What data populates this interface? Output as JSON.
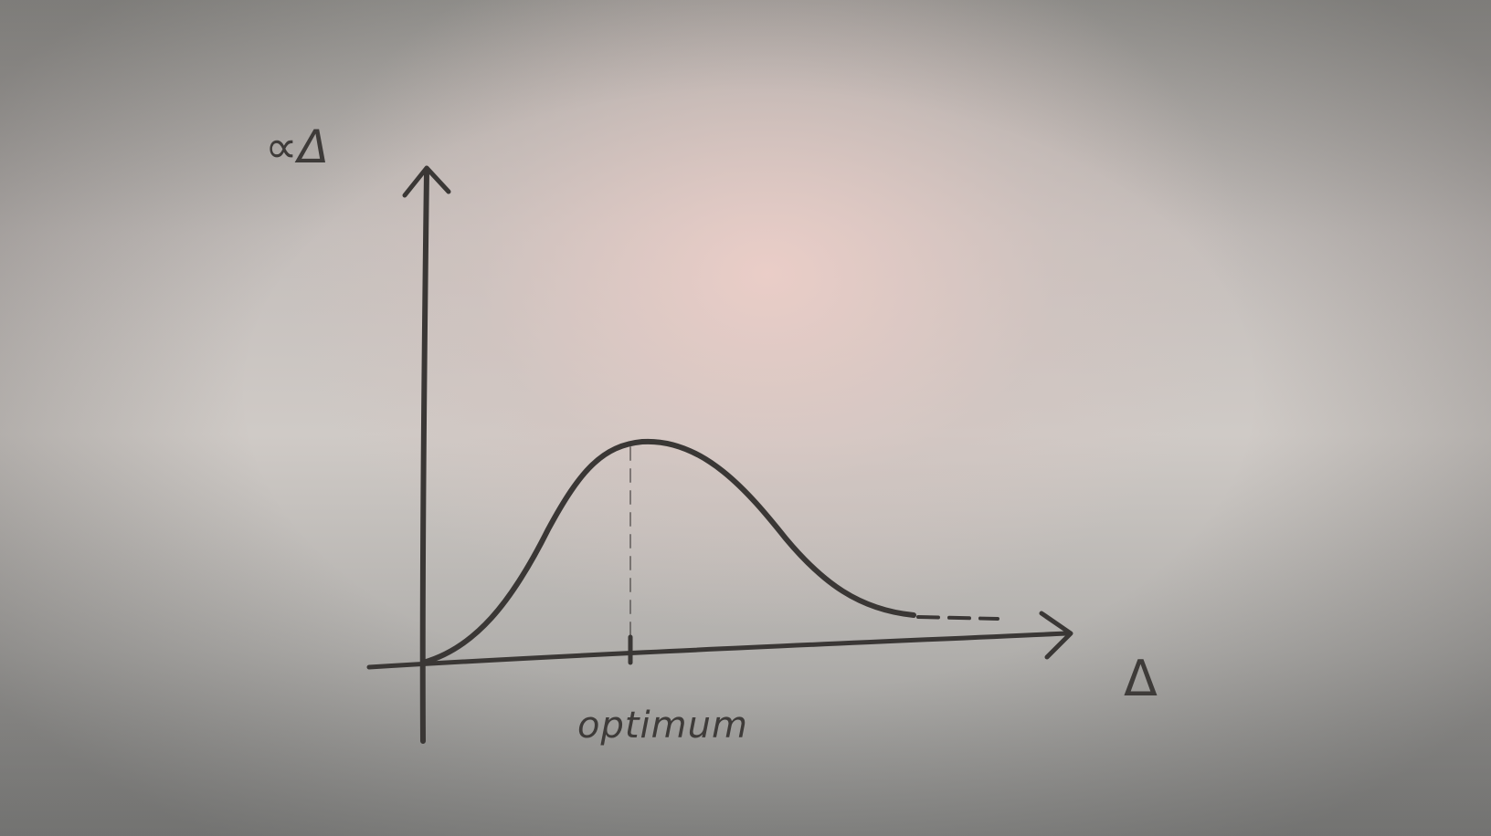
{
  "sketch": {
    "y_axis_label": "∝Δ",
    "x_axis_label": "Δ",
    "peak_label": "optimum"
  }
}
